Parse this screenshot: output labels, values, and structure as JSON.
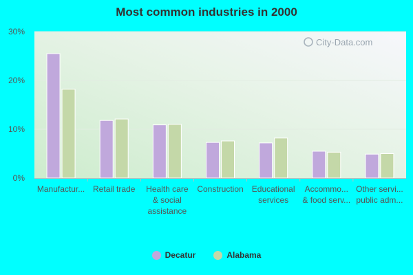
{
  "colors": {
    "Decatur": "#c0a8dc",
    "Alabama": "#c4d8a8"
  },
  "watermark": "City-Data.com",
  "chart_data": {
    "type": "bar",
    "title": "Most common industries in 2000",
    "categories": [
      [
        "Manufactur..."
      ],
      [
        "Retail trade"
      ],
      [
        "Health care",
        "& social",
        "assistance"
      ],
      [
        "Construction"
      ],
      [
        "Educational",
        "services"
      ],
      [
        "Accommo...",
        "& food serv..."
      ],
      [
        "Other servi...",
        "public adm..."
      ]
    ],
    "series": [
      {
        "name": "Decatur",
        "values": [
          25.5,
          11.8,
          10.9,
          7.3,
          7.2,
          5.5,
          4.9
        ]
      },
      {
        "name": "Alabama",
        "values": [
          18.2,
          12.1,
          11.0,
          7.6,
          8.2,
          5.3,
          5.0
        ]
      }
    ],
    "yticks": [
      "0%",
      "10%",
      "20%",
      "30%"
    ],
    "ylim": [
      0,
      30
    ],
    "grid": true,
    "legend": "bottom"
  }
}
